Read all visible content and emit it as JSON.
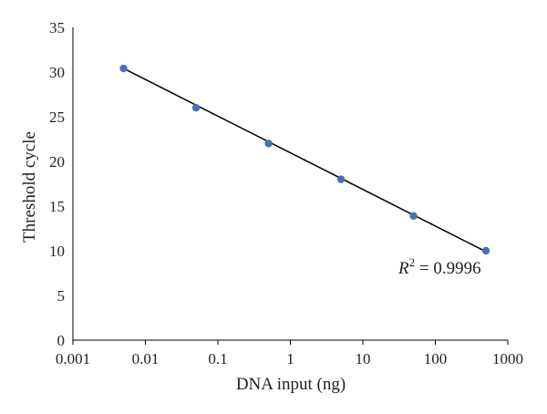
{
  "chart_data": {
    "type": "scatter",
    "title": "",
    "xlabel": "DNA input (ng)",
    "ylabel": "Threshold cycle",
    "x_scale": "log",
    "xlim": [
      0.001,
      1000
    ],
    "ylim": [
      0,
      35
    ],
    "x_ticks": [
      "0.001",
      "0.01",
      "0.1",
      "1",
      "10",
      "100",
      "1000"
    ],
    "y_ticks": [
      "0",
      "5",
      "10",
      "15",
      "20",
      "25",
      "30",
      "35"
    ],
    "grid": false,
    "legend": "none",
    "marker_color": "#4a6fb5",
    "line_color": "#000000",
    "series": [
      {
        "x": [
          0.005,
          0.05,
          0.5,
          5,
          50,
          500
        ],
        "y": [
          30.4,
          26.0,
          22.0,
          18.0,
          13.9,
          10.0
        ]
      }
    ],
    "trendline": {
      "type": "log-linear",
      "from": [
        0.005,
        30.4
      ],
      "to": [
        500,
        9.9
      ]
    },
    "annotation": {
      "r_label": "R",
      "r_exp": "2",
      "r_value": " = 0.9996"
    }
  }
}
